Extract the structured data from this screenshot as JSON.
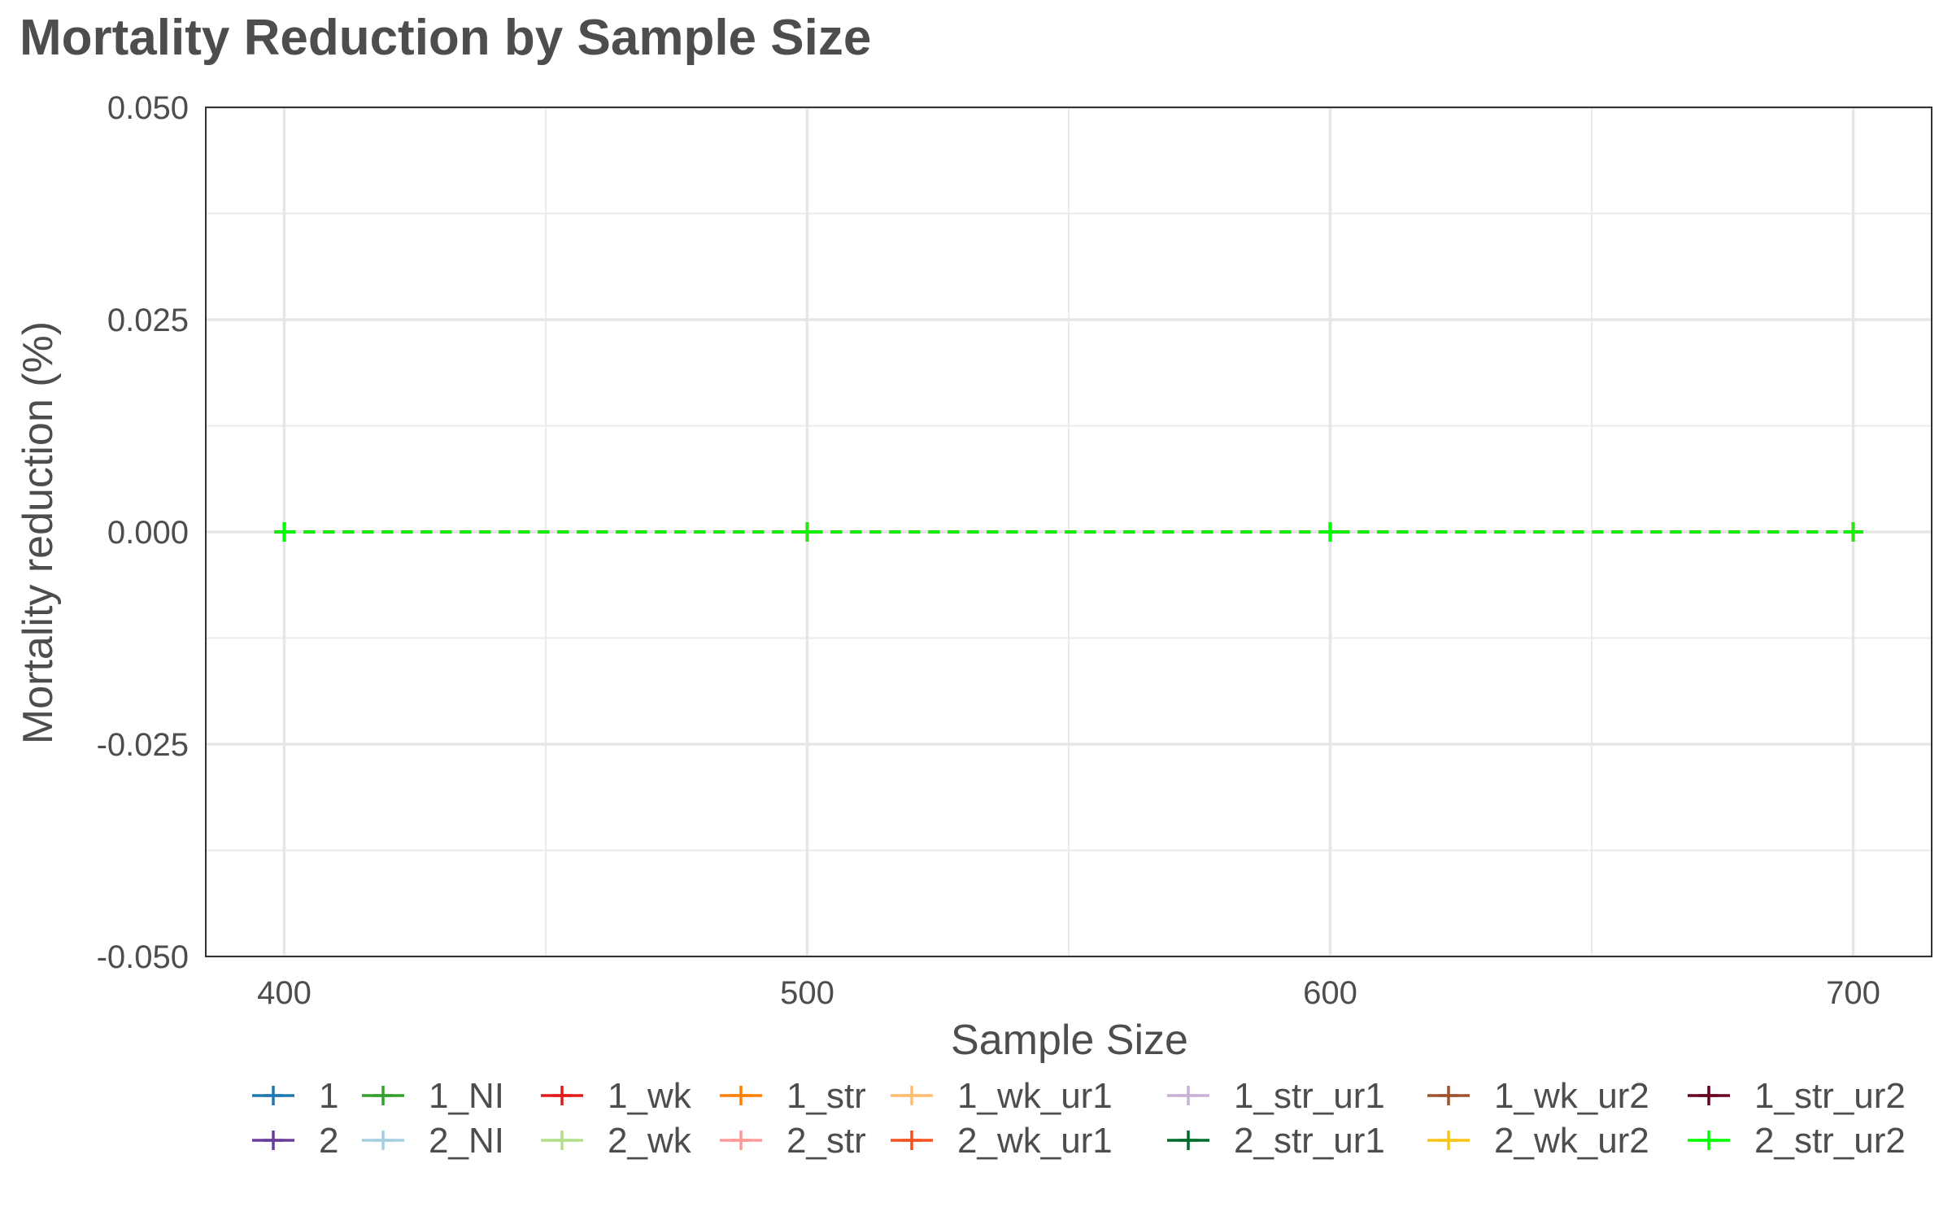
{
  "chart_data": {
    "type": "line",
    "title": "Mortality Reduction by Sample Size",
    "xlabel": "Sample Size",
    "ylabel": "Mortality reduction (%)",
    "xlim": [
      385,
      715
    ],
    "ylim": [
      -0.05,
      0.05
    ],
    "x_ticks": [
      400,
      500,
      600,
      700
    ],
    "x_minor": [
      450,
      550,
      650
    ],
    "y_ticks": [
      -0.05,
      -0.025,
      0.0,
      0.025,
      0.05
    ],
    "y_tick_labels": [
      "-0.050",
      "-0.025",
      "0.000",
      "0.025",
      "0.050"
    ],
    "y_minor": [
      -0.0375,
      -0.0125,
      0.0125,
      0.0375
    ],
    "x": [
      400,
      500,
      600,
      700
    ],
    "line_style": "dashed",
    "marker": "plus",
    "grid": true,
    "legend_position": "bottom",
    "series": [
      {
        "name": "1",
        "color": "#1f78b4",
        "values": [
          0,
          0,
          0,
          0
        ]
      },
      {
        "name": "2",
        "color": "#6a3d9a",
        "values": [
          0,
          0,
          0,
          0
        ]
      },
      {
        "name": "1_NI",
        "color": "#33a02c",
        "values": [
          0,
          0,
          0,
          0
        ]
      },
      {
        "name": "2_NI",
        "color": "#a6cee3",
        "values": [
          0,
          0,
          0,
          0
        ]
      },
      {
        "name": "1_wk",
        "color": "#e31a1c",
        "values": [
          0,
          0,
          0,
          0
        ]
      },
      {
        "name": "2_wk",
        "color": "#b2df8a",
        "values": [
          0,
          0,
          0,
          0
        ]
      },
      {
        "name": "1_str",
        "color": "#ff7f00",
        "values": [
          0,
          0,
          0,
          0
        ]
      },
      {
        "name": "2_str",
        "color": "#fb9a99",
        "values": [
          0,
          0,
          0,
          0
        ]
      },
      {
        "name": "1_wk_ur1",
        "color": "#fdbf6f",
        "values": [
          0,
          0,
          0,
          0
        ]
      },
      {
        "name": "2_wk_ur1",
        "color": "#f4511e",
        "values": [
          0,
          0,
          0,
          0
        ]
      },
      {
        "name": "1_str_ur1",
        "color": "#cab2d6",
        "values": [
          0,
          0,
          0,
          0
        ]
      },
      {
        "name": "2_str_ur1",
        "color": "#006d2c",
        "values": [
          0,
          0,
          0,
          0
        ]
      },
      {
        "name": "1_wk_ur2",
        "color": "#a0522d",
        "values": [
          0,
          0,
          0,
          0
        ]
      },
      {
        "name": "2_wk_ur2",
        "color": "#f5c518",
        "values": [
          0,
          0,
          0,
          0
        ]
      },
      {
        "name": "1_str_ur2",
        "color": "#67001f",
        "values": [
          0,
          0,
          0,
          0
        ]
      },
      {
        "name": "2_str_ur2",
        "color": "#00ff00",
        "values": [
          0,
          0,
          0,
          0
        ]
      }
    ]
  }
}
